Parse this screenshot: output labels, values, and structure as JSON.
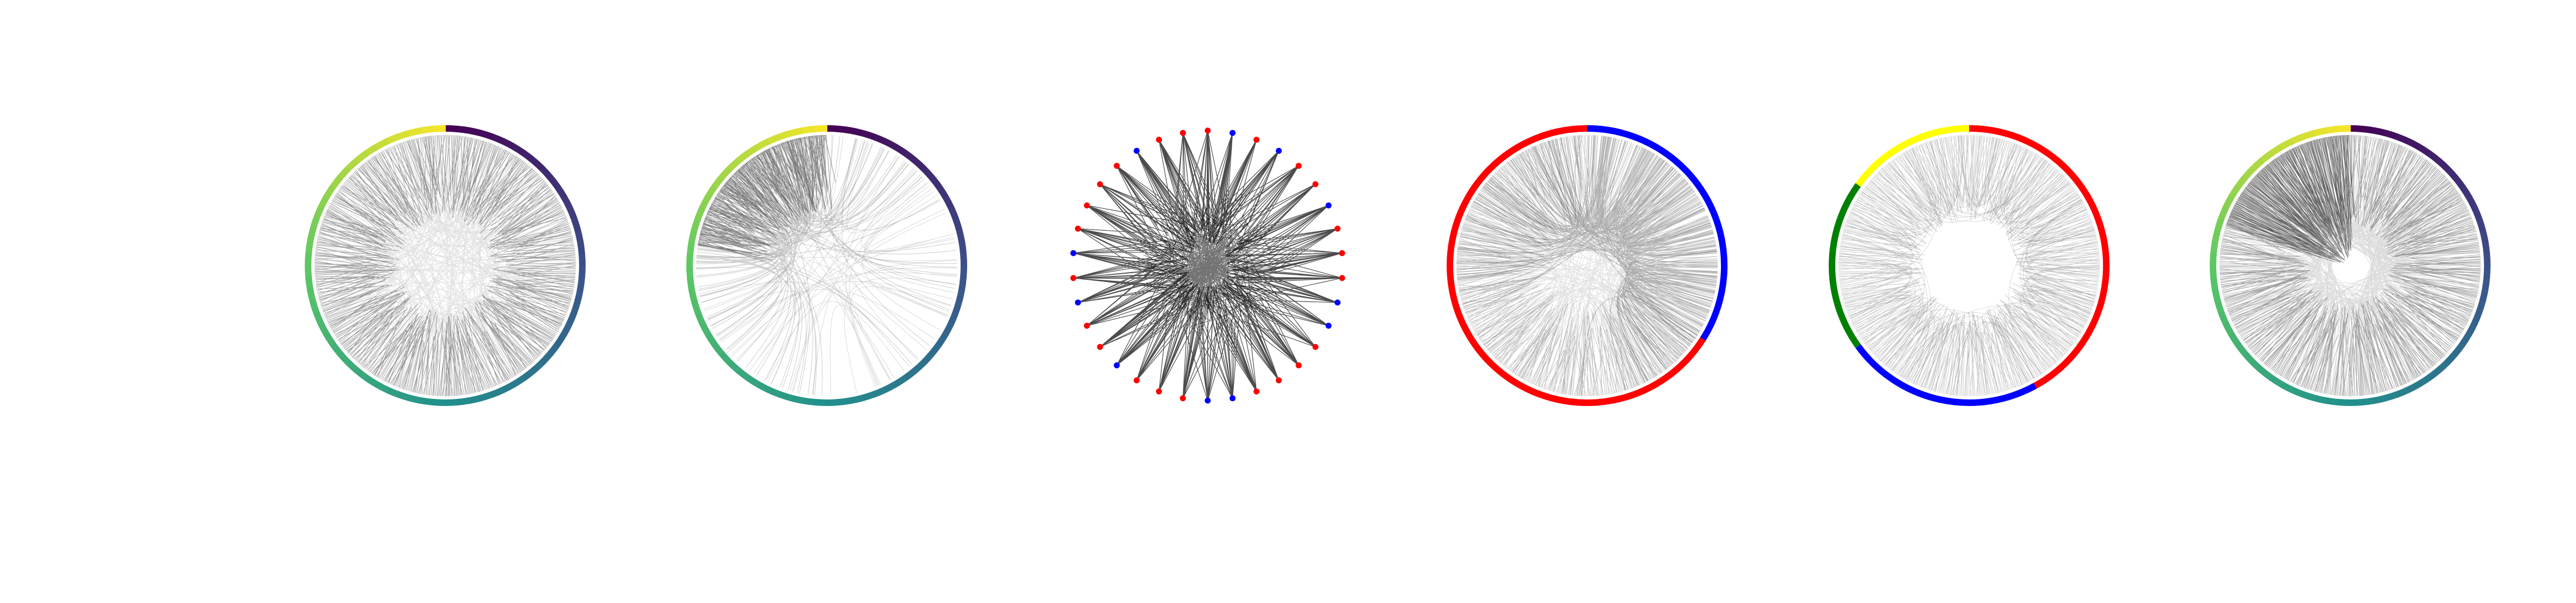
{
  "figure": {
    "panels": [
      {
        "id": "panel-1",
        "kind": "hierarchical-edge-bundle",
        "ring": "viridis",
        "edge_density": 0.9,
        "hollow_center": true
      },
      {
        "id": "panel-2",
        "kind": "hierarchical-edge-bundle",
        "ring": "viridis",
        "edge_density": 0.35,
        "concentrated_arc": "upper-left"
      },
      {
        "id": "panel-3",
        "kind": "star-network",
        "node_colors": [
          "#ff0000",
          "#0000ff"
        ],
        "node_count": 34
      },
      {
        "id": "panel-4",
        "kind": "two-group-chord",
        "segments": [
          {
            "color": "#0000ff",
            "fraction": 0.34
          },
          {
            "color": "#ff0000",
            "fraction": 0.66
          }
        ]
      },
      {
        "id": "panel-5",
        "kind": "four-group-chord",
        "segments": [
          {
            "color": "#ff0000",
            "fraction": 0.42
          },
          {
            "color": "#0000ff",
            "fraction": 0.23
          },
          {
            "color": "#008000",
            "fraction": 0.2
          },
          {
            "color": "#ffff00",
            "fraction": 0.15
          }
        ]
      },
      {
        "id": "panel-6",
        "kind": "hierarchical-edge-bundle",
        "ring": "viridis",
        "edge_density": 0.8,
        "dense_center": true
      }
    ],
    "colors": {
      "edge": "#000000",
      "background": "#ffffff"
    },
    "viridis_stops": [
      "#440154",
      "#3b528b",
      "#21918c",
      "#5ec962",
      "#fde725"
    ]
  }
}
